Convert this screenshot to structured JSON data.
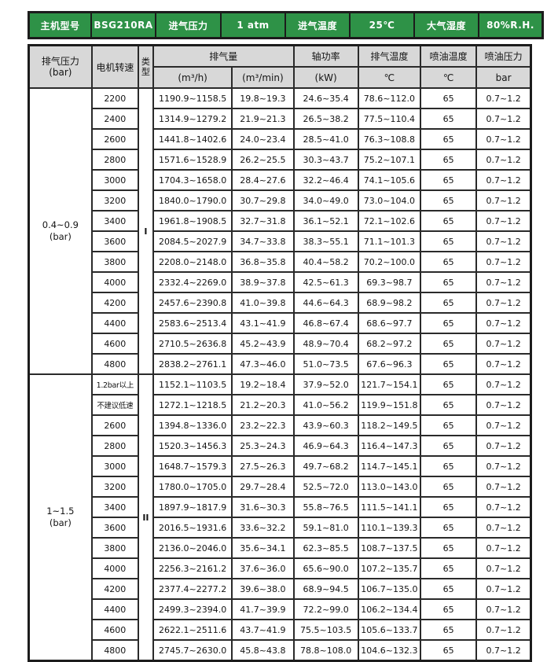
{
  "colors": {
    "header_green": "#2e9247",
    "header_text": "#ffffff",
    "subheader_bg": "#d8d8d8",
    "border": "#1c1c1c",
    "cell_bg": "#ffffff"
  },
  "top_header": {
    "cells": [
      "主机型号",
      "BSG210RA",
      "进气压力",
      "1 atm",
      "进气温度",
      "25℃",
      "大气湿度",
      "80%R.H."
    ]
  },
  "table_header": {
    "pressure_line1": "排气压力",
    "pressure_line2": "(bar)",
    "motor_speed": "电机转速",
    "type_line1": "类",
    "type_line2": "型",
    "flow": "排气量",
    "flow_unit_h": "(m³/h)",
    "flow_unit_min": "(m³/min)",
    "shaft_power": "轴功率",
    "shaft_power_unit": "(kW)",
    "discharge_temp": "排气温度",
    "discharge_temp_unit": "℃",
    "oil_temp": "喷油温度",
    "oil_temp_unit": "℃",
    "oil_pressure": "喷油压力",
    "oil_pressure_unit": "bar"
  },
  "sections": [
    {
      "pressure_line1": "0.4~0.9",
      "pressure_line2": "(bar)",
      "type": "I",
      "rows": [
        {
          "speed": "2200",
          "flow_h": "1190.9~1158.5",
          "flow_min": "19.8~19.3",
          "power": "24.6~35.4",
          "temp": "78.6~112.0",
          "oil_temp": "65",
          "oil_press": "0.7~1.2"
        },
        {
          "speed": "2400",
          "flow_h": "1314.9~1279.2",
          "flow_min": "21.9~21.3",
          "power": "26.5~38.2",
          "temp": "77.5~110.4",
          "oil_temp": "65",
          "oil_press": "0.7~1.2"
        },
        {
          "speed": "2600",
          "flow_h": "1441.8~1402.6",
          "flow_min": "24.0~23.4",
          "power": "28.5~41.0",
          "temp": "76.3~108.8",
          "oil_temp": "65",
          "oil_press": "0.7~1.2"
        },
        {
          "speed": "2800",
          "flow_h": "1571.6~1528.9",
          "flow_min": "26.2~25.5",
          "power": "30.3~43.7",
          "temp": "75.2~107.1",
          "oil_temp": "65",
          "oil_press": "0.7~1.2"
        },
        {
          "speed": "3000",
          "flow_h": "1704.3~1658.0",
          "flow_min": "28.4~27.6",
          "power": "32.2~46.4",
          "temp": "74.1~105.6",
          "oil_temp": "65",
          "oil_press": "0.7~1.2"
        },
        {
          "speed": "3200",
          "flow_h": "1840.0~1790.0",
          "flow_min": "30.7~29.8",
          "power": "34.0~49.0",
          "temp": "73.0~104.0",
          "oil_temp": "65",
          "oil_press": "0.7~1.2"
        },
        {
          "speed": "3400",
          "flow_h": "1961.8~1908.5",
          "flow_min": "32.7~31.8",
          "power": "36.1~52.1",
          "temp": "72.1~102.6",
          "oil_temp": "65",
          "oil_press": "0.7~1.2"
        },
        {
          "speed": "3600",
          "flow_h": "2084.5~2027.9",
          "flow_min": "34.7~33.8",
          "power": "38.3~55.1",
          "temp": "71.1~101.3",
          "oil_temp": "65",
          "oil_press": "0.7~1.2"
        },
        {
          "speed": "3800",
          "flow_h": "2208.0~2148.0",
          "flow_min": "36.8~35.8",
          "power": "40.4~58.2",
          "temp": "70.2~100.0",
          "oil_temp": "65",
          "oil_press": "0.7~1.2"
        },
        {
          "speed": "4000",
          "flow_h": "2332.4~2269.0",
          "flow_min": "38.9~37.8",
          "power": "42.5~61.3",
          "temp": "69.3~98.7",
          "oil_temp": "65",
          "oil_press": "0.7~1.2"
        },
        {
          "speed": "4200",
          "flow_h": "2457.6~2390.8",
          "flow_min": "41.0~39.8",
          "power": "44.6~64.3",
          "temp": "68.9~98.2",
          "oil_temp": "65",
          "oil_press": "0.7~1.2"
        },
        {
          "speed": "4400",
          "flow_h": "2583.6~2513.4",
          "flow_min": "43.1~41.9",
          "power": "46.8~67.4",
          "temp": "68.6~97.7",
          "oil_temp": "65",
          "oil_press": "0.7~1.2"
        },
        {
          "speed": "4600",
          "flow_h": "2710.5~2636.8",
          "flow_min": "45.2~43.9",
          "power": "48.9~70.4",
          "temp": "68.2~97.2",
          "oil_temp": "65",
          "oil_press": "0.7~1.2"
        },
        {
          "speed": "4800",
          "flow_h": "2838.2~2761.1",
          "flow_min": "47.3~46.0",
          "power": "51.0~73.5",
          "temp": "67.6~96.3",
          "oil_temp": "65",
          "oil_press": "0.7~1.2"
        }
      ]
    },
    {
      "pressure_line1": "1~1.5",
      "pressure_line2": "(bar)",
      "type": "II",
      "rows": [
        {
          "speed": "1.2bar以上",
          "flow_h": "1152.1~1103.5",
          "flow_min": "19.2~18.4",
          "power": "37.9~52.0",
          "temp": "121.7~154.1",
          "oil_temp": "65",
          "oil_press": "0.7~1.2"
        },
        {
          "speed": "不建议低速",
          "flow_h": "1272.1~1218.5",
          "flow_min": "21.2~20.3",
          "power": "41.0~56.2",
          "temp": "119.9~151.8",
          "oil_temp": "65",
          "oil_press": "0.7~1.2"
        },
        {
          "speed": "2600",
          "flow_h": "1394.8~1336.0",
          "flow_min": "23.2~22.3",
          "power": "43.9~60.3",
          "temp": "118.2~149.5",
          "oil_temp": "65",
          "oil_press": "0.7~1.2"
        },
        {
          "speed": "2800",
          "flow_h": "1520.3~1456.3",
          "flow_min": "25.3~24.3",
          "power": "46.9~64.3",
          "temp": "116.4~147.3",
          "oil_temp": "65",
          "oil_press": "0.7~1.2"
        },
        {
          "speed": "3000",
          "flow_h": "1648.7~1579.3",
          "flow_min": "27.5~26.3",
          "power": "49.7~68.2",
          "temp": "114.7~145.1",
          "oil_temp": "65",
          "oil_press": "0.7~1.2"
        },
        {
          "speed": "3200",
          "flow_h": "1780.0~1705.0",
          "flow_min": "29.7~28.4",
          "power": "52.5~72.0",
          "temp": "113.0~143.0",
          "oil_temp": "65",
          "oil_press": "0.7~1.2"
        },
        {
          "speed": "3400",
          "flow_h": "1897.9~1817.9",
          "flow_min": "31.6~30.3",
          "power": "55.8~76.5",
          "temp": "111.5~141.1",
          "oil_temp": "65",
          "oil_press": "0.7~1.2"
        },
        {
          "speed": "3600",
          "flow_h": "2016.5~1931.6",
          "flow_min": "33.6~32.2",
          "power": "59.1~81.0",
          "temp": "110.1~139.3",
          "oil_temp": "65",
          "oil_press": "0.7~1.2"
        },
        {
          "speed": "3800",
          "flow_h": "2136.0~2046.0",
          "flow_min": "35.6~34.1",
          "power": "62.3~85.5",
          "temp": "108.7~137.5",
          "oil_temp": "65",
          "oil_press": "0.7~1.2"
        },
        {
          "speed": "4000",
          "flow_h": "2256.3~2161.2",
          "flow_min": "37.6~36.0",
          "power": "65.6~90.0",
          "temp": "107.2~135.7",
          "oil_temp": "65",
          "oil_press": "0.7~1.2"
        },
        {
          "speed": "4200",
          "flow_h": "2377.4~2277.2",
          "flow_min": "39.6~38.0",
          "power": "68.9~94.5",
          "temp": "106.7~135.0",
          "oil_temp": "65",
          "oil_press": "0.7~1.2"
        },
        {
          "speed": "4400",
          "flow_h": "2499.3~2394.0",
          "flow_min": "41.7~39.9",
          "power": "72.2~99.0",
          "temp": "106.2~134.4",
          "oil_temp": "65",
          "oil_press": "0.7~1.2"
        },
        {
          "speed": "4600",
          "flow_h": "2622.1~2511.6",
          "flow_min": "43.7~41.9",
          "power": "75.5~103.5",
          "temp": "105.6~133.7",
          "oil_temp": "65",
          "oil_press": "0.7~1.2"
        },
        {
          "speed": "4800",
          "flow_h": "2745.7~2630.0",
          "flow_min": "45.8~43.8",
          "power": "78.8~108.0",
          "temp": "104.6~132.3",
          "oil_temp": "65",
          "oil_press": "0.7~1.2"
        }
      ]
    }
  ]
}
